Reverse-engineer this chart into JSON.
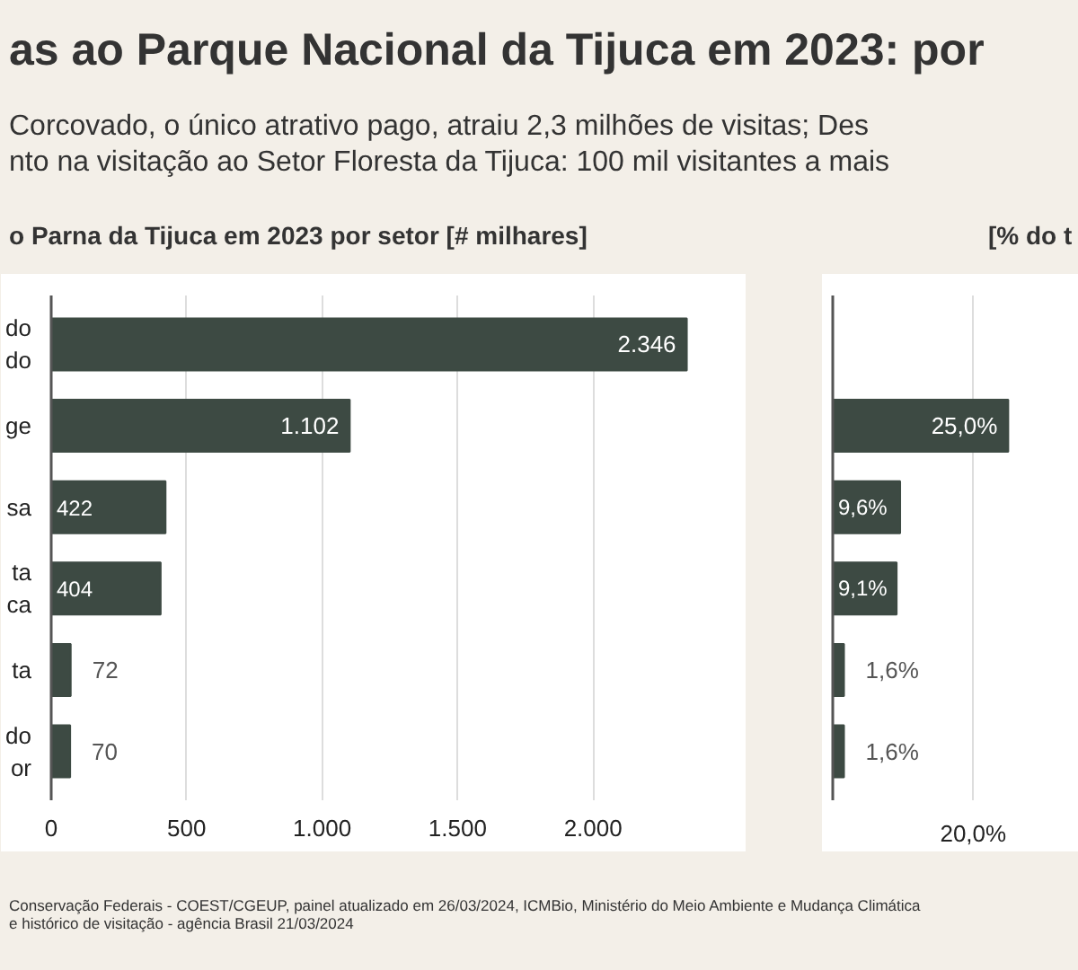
{
  "chart_data": [
    {
      "type": "bar",
      "orientation": "horizontal",
      "title": "as ao Parque Nacional da Tijuca em 2023: por",
      "subtitle": "Corcovado, o único atrativo pago, atraiu 2,3 milhões de visitas; Des\nnto na visitação ao Setor Floresta da Tijuca: 100 mil visitantes a mais",
      "xlabel": "o Parna da Tijuca em 2023 por setor [# milhares]",
      "categories": [
        "do\ndo",
        "ge",
        "sa",
        "ta\nca",
        "ta",
        "do\nor"
      ],
      "values": [
        2346,
        1102,
        422,
        404,
        72,
        70
      ],
      "value_labels": [
        "2.346",
        "1.102",
        "422",
        "404",
        "72",
        "70"
      ],
      "color": "#3d4a43",
      "xlim": [
        0,
        2500
      ],
      "xticks": [
        0,
        500,
        {
          "value": 1000,
          "label": "1.000"
        },
        {
          "value": 1500,
          "label": "1.500"
        },
        {
          "value": 2000,
          "label": "2.000"
        },
        {
          "value": 2500,
          "label": null
        }
      ],
      "grid": "x",
      "annotations": [
        "Conservação Federais - COEST/CGEUP, painel atualizado em 26/03/2024, ICMBio, Ministério do Meio Ambiente e Mudança Climática",
        "e histórico de visitação - agência Brasil 21/03/2024"
      ]
    },
    {
      "type": "bar",
      "orientation": "horizontal",
      "xlabel": "[% do t",
      "categories": [
        null,
        null,
        null,
        null,
        null,
        null
      ],
      "values": [
        null,
        25.0,
        9.6,
        9.1,
        1.6,
        1.6
      ],
      "value_labels": [
        null,
        "25,0%",
        "9,6%",
        "9,1%",
        "1,6%",
        "1,6%"
      ],
      "color": "#3d4a43",
      "xlim": [
        0,
        32.5
      ],
      "xticks": [
        {
          "value": 0,
          "label": null
        },
        {
          "value": 20,
          "label": "20,0%"
        }
      ],
      "grid": "x",
      "tick_labels": "x"
    }
  ]
}
